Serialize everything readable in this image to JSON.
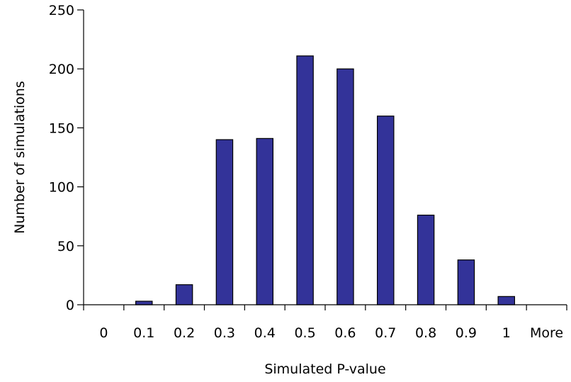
{
  "chart_data": {
    "type": "bar",
    "title": "",
    "xlabel": "Simulated P-value",
    "ylabel": "Number of simulations",
    "categories": [
      "0",
      "0.1",
      "0.2",
      "0.3",
      "0.4",
      "0.5",
      "0.6",
      "0.7",
      "0.8",
      "0.9",
      "1",
      "More"
    ],
    "values": [
      0,
      3,
      17,
      140,
      141,
      211,
      200,
      160,
      76,
      38,
      7,
      0
    ],
    "ylim": [
      0,
      250
    ],
    "yticks": [
      0,
      50,
      100,
      150,
      200,
      250
    ],
    "grid": false,
    "legend": "none",
    "bar_color": "#333399"
  }
}
